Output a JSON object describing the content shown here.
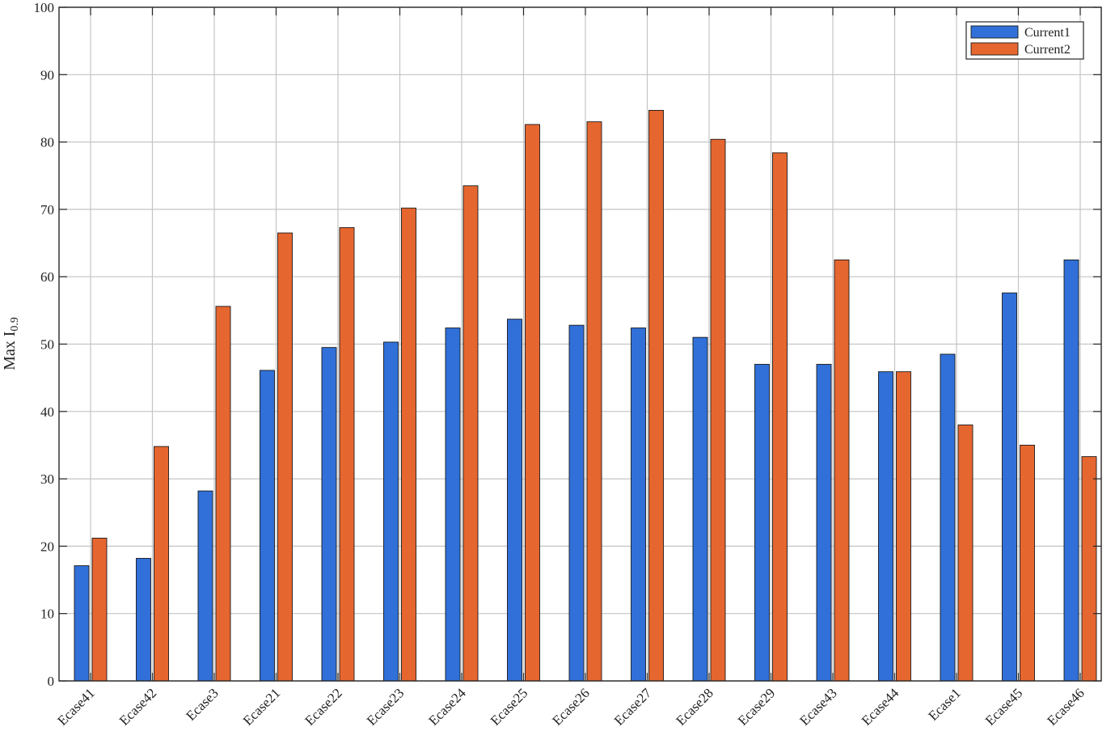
{
  "chart_data": {
    "type": "bar",
    "title": "",
    "xlabel": "",
    "ylabel": {
      "main": "Max I",
      "subscript": "0.9"
    },
    "ylim": [
      0,
      100
    ],
    "yticks": [
      0,
      10,
      20,
      30,
      40,
      50,
      60,
      70,
      80,
      90,
      100
    ],
    "grid": true,
    "legend_position": "top-right",
    "categories": [
      "Ecase41",
      "Ecase42",
      "Ecase3",
      "Ecase21",
      "Ecase22",
      "Ecase23",
      "Ecase24",
      "Ecase25",
      "Ecase26",
      "Ecase27",
      "Ecase28",
      "Ecase29",
      "Ecase43",
      "Ecase44",
      "Ecase1",
      "Ecase45",
      "Ecase46"
    ],
    "series": [
      {
        "name": "Current1",
        "color": "#3070d8",
        "values": [
          17.1,
          18.2,
          28.2,
          46.1,
          49.5,
          50.3,
          52.4,
          53.7,
          52.8,
          52.4,
          51.0,
          47.0,
          47.0,
          45.9,
          48.5,
          57.6,
          62.5
        ]
      },
      {
        "name": "Current2",
        "color": "#e6662f",
        "values": [
          21.2,
          34.8,
          55.6,
          66.5,
          67.3,
          70.2,
          73.5,
          82.6,
          83.0,
          84.7,
          80.4,
          78.4,
          62.5,
          45.9,
          38.0,
          35.0,
          33.3
        ]
      }
    ]
  }
}
